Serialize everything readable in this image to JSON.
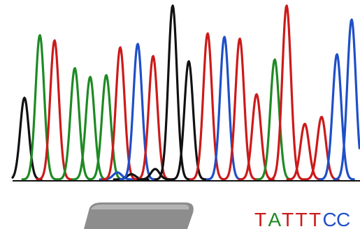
{
  "chart_data": {
    "type": "line",
    "title": "",
    "xlabel": "",
    "ylabel": "",
    "colors": {
      "A": "#1f8a24",
      "T": "#cc1a1a",
      "G": "#111111",
      "C": "#1f4fc8"
    },
    "grid": false,
    "legend": "none",
    "ylim": [
      0,
      1
    ],
    "peaks": [
      {
        "base": "G",
        "pos": 35,
        "height": 0.47
      },
      {
        "base": "A",
        "pos": 57,
        "height": 0.83
      },
      {
        "base": "T",
        "pos": 78,
        "height": 0.8
      },
      {
        "base": "A",
        "pos": 107,
        "height": 0.64
      },
      {
        "base": "A",
        "pos": 129,
        "height": 0.59
      },
      {
        "base": "A",
        "pos": 152,
        "height": 0.6
      },
      {
        "base": "C",
        "pos": 168,
        "height": 0.04
      },
      {
        "base": "T",
        "pos": 172,
        "height": 0.76
      },
      {
        "base": "G",
        "pos": 188,
        "height": 0.03
      },
      {
        "base": "C",
        "pos": 197,
        "height": 0.78
      },
      {
        "base": "T",
        "pos": 219,
        "height": 0.71
      },
      {
        "base": "G",
        "pos": 222,
        "height": 0.06
      },
      {
        "base": "G",
        "pos": 247,
        "height": 1.0
      },
      {
        "base": "G",
        "pos": 270,
        "height": 0.68
      },
      {
        "base": "T",
        "pos": 297,
        "height": 0.84
      },
      {
        "base": "C",
        "pos": 321,
        "height": 0.82
      },
      {
        "base": "T",
        "pos": 343,
        "height": 0.81
      },
      {
        "base": "T",
        "pos": 367,
        "height": 0.49
      },
      {
        "base": "A",
        "pos": 393,
        "height": 0.69
      },
      {
        "base": "T",
        "pos": 410,
        "height": 1.0
      },
      {
        "base": "T",
        "pos": 436,
        "height": 0.32
      },
      {
        "base": "T",
        "pos": 460,
        "height": 0.36
      },
      {
        "base": "C",
        "pos": 482,
        "height": 0.72
      },
      {
        "base": "C",
        "pos": 503,
        "height": 0.92
      }
    ],
    "base_calls": [
      {
        "letter": "T",
        "color": "#cc1a1a"
      },
      {
        "letter": "A",
        "color": "#1f8a24"
      },
      {
        "letter": "T",
        "color": "#cc1a1a"
      },
      {
        "letter": "T",
        "color": "#cc1a1a"
      },
      {
        "letter": "T",
        "color": "#cc1a1a"
      },
      {
        "letter": "C",
        "color": "#1f4fc8"
      },
      {
        "letter": "C",
        "color": "#1f4fc8"
      }
    ]
  }
}
